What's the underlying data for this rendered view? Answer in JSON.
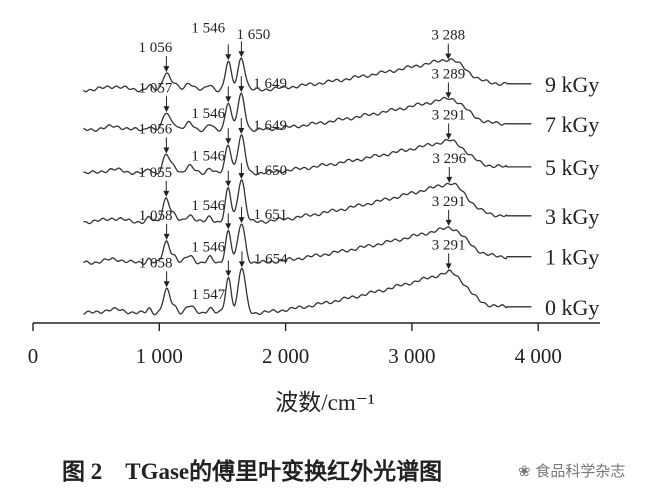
{
  "chart_data": {
    "type": "line",
    "title": "",
    "xlabel": "波数/cm⁻¹",
    "ylabel": "",
    "xlim": [
      0,
      4000
    ],
    "xticks": [
      0,
      1000,
      2000,
      3000,
      4000
    ],
    "xtick_labels": [
      "0",
      "1 000",
      "2 000",
      "3 000",
      "4 000"
    ],
    "grid": false,
    "legend": "labels at right end of each curve",
    "x_range_measured": [
      400,
      3800
    ],
    "series": [
      {
        "name": "0 kGy",
        "offset": 0.0,
        "peaks": [
          {
            "wn": 1058,
            "label": "1 058",
            "h": 0.52
          },
          {
            "wn": 1547,
            "label": "1 547",
            "h": 0.8
          },
          {
            "wn": 1654,
            "label": "1 654",
            "h": 1.02
          },
          {
            "wn": 3291,
            "label": "3 291",
            "h": 0.93
          }
        ]
      },
      {
        "name": "1 kGy",
        "offset": 1.14,
        "peaks": [
          {
            "wn": 1058,
            "label": "1 058",
            "h": 0.48
          },
          {
            "wn": 1546,
            "label": "1 546",
            "h": 0.72
          },
          {
            "wn": 1651,
            "label": "1 651",
            "h": 0.9
          },
          {
            "wn": 3291,
            "label": "3 291",
            "h": 0.8
          }
        ]
      },
      {
        "name": "3 kGy",
        "offset": 2.07,
        "peaks": [
          {
            "wn": 1055,
            "label": "1 055",
            "h": 0.55
          },
          {
            "wn": 1546,
            "label": "1 546",
            "h": 0.75
          },
          {
            "wn": 1650,
            "label": "1 650",
            "h": 0.98
          },
          {
            "wn": 3296,
            "label": "3 296",
            "h": 0.88
          }
        ]
      },
      {
        "name": "5 kGy",
        "offset": 3.18,
        "peaks": [
          {
            "wn": 1056,
            "label": "1 056",
            "h": 0.42
          },
          {
            "wn": 1546,
            "label": "1 546",
            "h": 0.66
          },
          {
            "wn": 1649,
            "label": "1 649",
            "h": 0.84
          },
          {
            "wn": 3291,
            "label": "3 291",
            "h": 0.74
          }
        ]
      },
      {
        "name": "7 kGy",
        "offset": 4.16,
        "peaks": [
          {
            "wn": 1057,
            "label": "1 057",
            "h": 0.4
          },
          {
            "wn": 1546,
            "label": "1 546",
            "h": 0.64
          },
          {
            "wn": 1649,
            "label": "1 649",
            "h": 0.8
          },
          {
            "wn": 3289,
            "label": "3 289",
            "h": 0.72
          }
        ]
      },
      {
        "name": "9 kGy",
        "offset": 5.07,
        "peaks": [
          {
            "wn": 1056,
            "label": "1 056",
            "h": 0.41
          },
          {
            "wn": 1546,
            "label": "1 546",
            "h": 0.64
          },
          {
            "wn": 1650,
            "label": "1 650",
            "h": 0.73
          },
          {
            "wn": 3288,
            "label": "3 288",
            "h": 0.7
          }
        ]
      }
    ]
  },
  "caption": {
    "figure_no": "图 2",
    "text": "TGase的傅里叶变换红外光谱图"
  },
  "watermark": "食品科学杂志"
}
